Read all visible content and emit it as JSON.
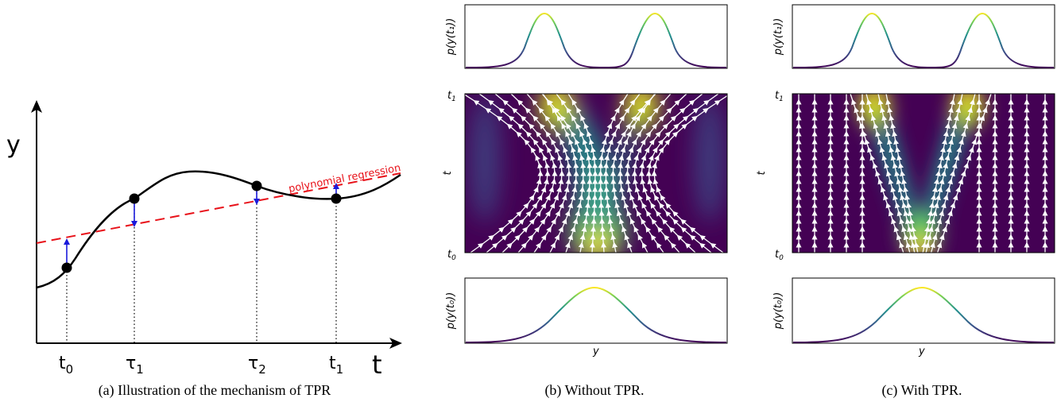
{
  "panel_a": {
    "y_axis_label": "y",
    "t_axis_label": "t",
    "regression_label": "polynomial regression",
    "tick_t0": "t",
    "tick_t0_sub": "0",
    "tick_tau1": "τ",
    "tick_tau1_sub": "1",
    "tick_tau2": "τ",
    "tick_tau2_sub": "2",
    "tick_t1": "t",
    "tick_t1_sub": "1",
    "caption": "(a) Illustration of the mechanism of TPR",
    "colors": {
      "curve": "#000000",
      "regression": "#e8121a",
      "arrow": "#1a1adb"
    }
  },
  "panel_b": {
    "top_ylabel": "p(y(t₁))",
    "bottom_ylabel": "p(y(t₀))",
    "mid_ylabel": "t",
    "tick_top": "t",
    "tick_top_sub": "1",
    "tick_bottom": "t",
    "tick_bottom_sub": "0",
    "xlabel": "y",
    "caption": "(b) Without TPR."
  },
  "panel_c": {
    "top_ylabel": "p(y(t₁))",
    "bottom_ylabel": "p(y(t₀))",
    "mid_ylabel": "t",
    "tick_top": "t",
    "tick_top_sub": "1",
    "tick_bottom": "t",
    "tick_bottom_sub": "0",
    "xlabel": "y",
    "caption": "(c) With TPR."
  },
  "colormap": [
    "#440154",
    "#3b528b",
    "#21918c",
    "#5ec962",
    "#fde725"
  ]
}
